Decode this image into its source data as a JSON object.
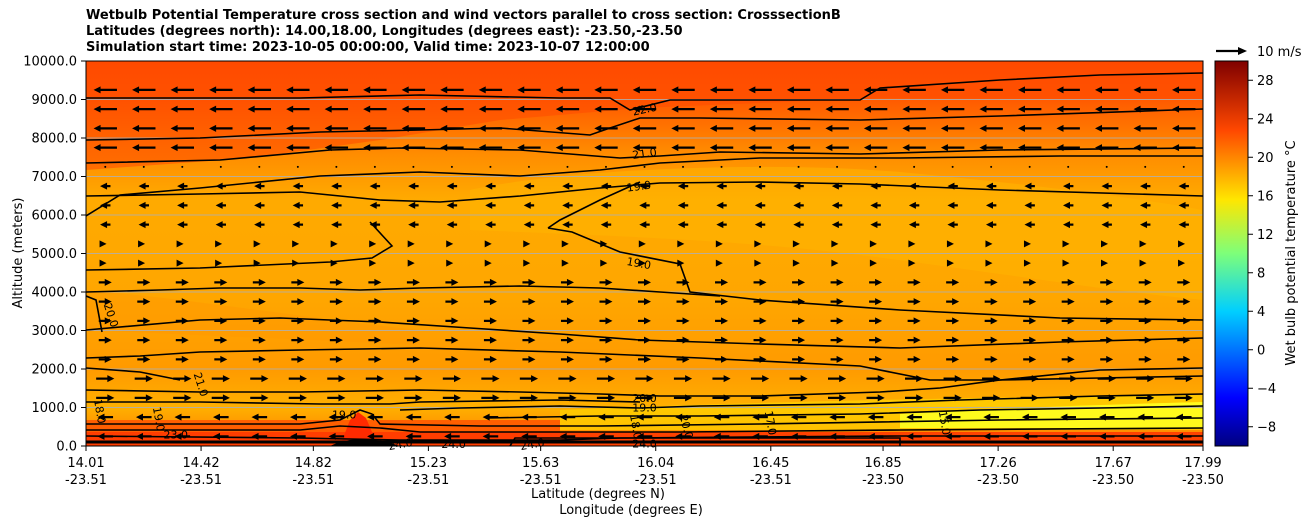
{
  "figure": {
    "title_lines": [
      "Wetbulb Potential Temperature cross section and wind vectors parallel to cross section: CrosssectionB",
      "Latitudes (degrees north): 14.00,18.00, Longitudes (degrees east): -23.50,-23.50",
      "Simulation start time: 2023-10-05 00:00:00, Valid time: 2023-10-07 12:00:00"
    ]
  },
  "chart_data": {
    "type": "heatmap",
    "subtype": "filled contour cross-section with contour lines and wind vectors",
    "title": "Wetbulb Potential Temperature cross section and wind vectors parallel to cross section: CrosssectionB",
    "xlabel": "Latitude (degrees N)",
    "xlabel2": "Longitude (degrees E)",
    "ylabel": "Altitude (meters)",
    "ylim": [
      0,
      10000
    ],
    "xlim": [
      14.01,
      17.99
    ],
    "y_ticks": [
      0,
      1000,
      2000,
      3000,
      4000,
      5000,
      6000,
      7000,
      8000,
      9000,
      10000
    ],
    "y_tick_labels": [
      "0.0",
      "1000.0",
      "2000.0",
      "3000.0",
      "4000.0",
      "5000.0",
      "6000.0",
      "7000.0",
      "8000.0",
      "9000.0",
      "10000.0"
    ],
    "x_ticks": [
      {
        "lat": "14.01",
        "lon": "-23.51"
      },
      {
        "lat": "14.42",
        "lon": "-23.51"
      },
      {
        "lat": "14.82",
        "lon": "-23.51"
      },
      {
        "lat": "15.23",
        "lon": "-23.51"
      },
      {
        "lat": "15.63",
        "lon": "-23.51"
      },
      {
        "lat": "16.04",
        "lon": "-23.51"
      },
      {
        "lat": "16.45",
        "lon": "-23.51"
      },
      {
        "lat": "16.85",
        "lon": "-23.50"
      },
      {
        "lat": "17.26",
        "lon": "-23.50"
      },
      {
        "lat": "17.67",
        "lon": "-23.50"
      },
      {
        "lat": "17.99",
        "lon": "-23.50"
      }
    ],
    "grid": "horizontal",
    "colorbar": {
      "label": "Wet bulb potential temperature $^\\circ$C",
      "label_display": "Wet bulb potential temperature °C",
      "range": [
        -10,
        30
      ],
      "ticks": [
        -8,
        -4,
        0,
        4,
        8,
        12,
        16,
        20,
        24,
        28
      ],
      "tick_labels": [
        "−8",
        "−4",
        "0",
        "4",
        "8",
        "12",
        "16",
        "20",
        "24",
        "28"
      ],
      "colormap": "jet",
      "position": "right"
    },
    "quiver_key": {
      "value": 10,
      "units": "m/s",
      "label": "10 m/s",
      "position": "top-right"
    },
    "contour_labels": [
      {
        "text": "22.0",
        "lat": 16.0,
        "alt": 8750,
        "angle": -12
      },
      {
        "text": "21.0",
        "lat": 16.0,
        "alt": 7600,
        "angle": -8
      },
      {
        "text": "19.0",
        "lat": 15.98,
        "alt": 6750,
        "angle": -8
      },
      {
        "text": "19.0",
        "lat": 15.98,
        "alt": 4750,
        "angle": 10
      },
      {
        "text": "20.0",
        "lat": 14.1,
        "alt": 3400,
        "angle": 72
      },
      {
        "text": "21.0",
        "lat": 14.42,
        "alt": 1600,
        "angle": 72
      },
      {
        "text": "20.0",
        "lat": 16.0,
        "alt": 1250,
        "angle": 0
      },
      {
        "text": "19.0",
        "lat": 16.0,
        "alt": 1000,
        "angle": 0
      },
      {
        "text": "19.0",
        "lat": 14.93,
        "alt": 820,
        "angle": 0
      },
      {
        "text": "18.0",
        "lat": 14.06,
        "alt": 900,
        "angle": 80
      },
      {
        "text": "19.0",
        "lat": 14.27,
        "alt": 700,
        "angle": 80
      },
      {
        "text": "23.0",
        "lat": 14.33,
        "alt": 300,
        "angle": 0
      },
      {
        "text": "24.0",
        "lat": 15.13,
        "alt": 50,
        "angle": -10
      },
      {
        "text": "24.0",
        "lat": 15.32,
        "alt": 50,
        "angle": 0
      },
      {
        "text": "24.0",
        "lat": 15.6,
        "alt": 50,
        "angle": -10
      },
      {
        "text": "18.0",
        "lat": 15.97,
        "alt": 500,
        "angle": 80
      },
      {
        "text": "24.0",
        "lat": 16.0,
        "alt": 60,
        "angle": 0
      },
      {
        "text": "20.0",
        "lat": 16.15,
        "alt": 500,
        "angle": 75
      },
      {
        "text": "17.0",
        "lat": 16.45,
        "alt": 600,
        "angle": 80
      },
      {
        "text": "15.0",
        "lat": 17.07,
        "alt": 600,
        "angle": 80
      }
    ],
    "wind_field_description": [
      {
        "alt_range": [
          7500,
          10000
        ],
        "u_ms": -9,
        "note": "easterly (toward smaller latitude)"
      },
      {
        "alt_range": [
          5500,
          7000
        ],
        "u_ms": -4
      },
      {
        "alt_range": [
          4500,
          5500
        ],
        "u_ms": 1
      },
      {
        "alt_range": [
          2000,
          4500
        ],
        "u_ms": 5,
        "note": "westerly (toward larger latitude)"
      },
      {
        "alt_range": [
          1000,
          2000
        ],
        "u_ms": 7
      },
      {
        "alt_range": [
          0,
          1000
        ],
        "u_ms": -6,
        "note": "surface easterly"
      }
    ]
  }
}
